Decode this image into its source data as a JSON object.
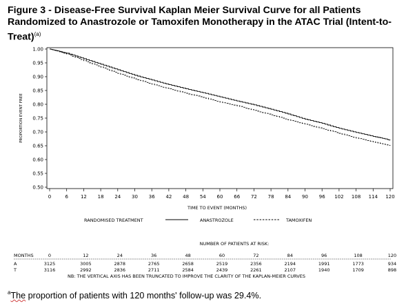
{
  "title": {
    "text": "Figure 3 - Disease-Free Survival Kaplan Meier Survival Curve for all Patients Randomized to Anastrozole or Tamoxifen Monotherapy in the ATAC Trial (Intent-to-Treat)",
    "superscript": "(a)"
  },
  "chart_data": {
    "type": "line",
    "title": "",
    "xlabel": "TIME TO EVENT (MONTHS)",
    "ylabel": "PROPORTION EVENT FREE",
    "xlim": [
      0,
      120
    ],
    "ylim": [
      0.5,
      1.0
    ],
    "x_ticks": [
      0,
      6,
      12,
      18,
      24,
      30,
      36,
      42,
      48,
      54,
      60,
      66,
      72,
      78,
      84,
      90,
      96,
      102,
      108,
      114,
      120
    ],
    "y_ticks": [
      0.5,
      0.55,
      0.6,
      0.65,
      0.7,
      0.75,
      0.8,
      0.85,
      0.9,
      0.95,
      1.0
    ],
    "y_tick_labels": [
      "0.50",
      "0.55",
      "0.60",
      "0.65",
      "0.70",
      "0.75",
      "0.80",
      "0.85",
      "0.90",
      "0.95",
      "1.00"
    ],
    "legend": {
      "title": "RANDOMISED TREATMENT",
      "placement": "bottom"
    },
    "series": [
      {
        "name": "ANASTROZOLE",
        "style": "solid",
        "x": [
          0,
          3,
          6,
          12,
          18,
          24,
          30,
          36,
          42,
          48,
          54,
          60,
          66,
          72,
          78,
          84,
          90,
          96,
          102,
          108,
          114,
          119,
          120
        ],
        "y": [
          1.0,
          0.993,
          0.985,
          0.965,
          0.945,
          0.925,
          0.905,
          0.888,
          0.871,
          0.856,
          0.842,
          0.827,
          0.812,
          0.798,
          0.782,
          0.765,
          0.746,
          0.731,
          0.713,
          0.698,
          0.684,
          0.673,
          0.67
        ]
      },
      {
        "name": "TAMOXIFEN",
        "style": "dashed",
        "x": [
          0,
          3,
          6,
          12,
          18,
          24,
          30,
          36,
          42,
          48,
          54,
          60,
          66,
          72,
          78,
          84,
          90,
          96,
          102,
          108,
          114,
          119,
          120
        ],
        "y": [
          1.0,
          0.992,
          0.982,
          0.958,
          0.935,
          0.912,
          0.892,
          0.873,
          0.856,
          0.84,
          0.825,
          0.808,
          0.795,
          0.778,
          0.762,
          0.744,
          0.728,
          0.712,
          0.695,
          0.678,
          0.664,
          0.653,
          0.651
        ]
      }
    ]
  },
  "risk_table": {
    "heading": "NUMBER OF PATIENTS AT RISK:",
    "header_label": "MONTHS",
    "months": [
      "0",
      "12",
      "24",
      "36",
      "48",
      "60",
      "72",
      "84",
      "96",
      "108",
      "120"
    ],
    "rows": [
      {
        "label": "A",
        "values": [
          "3125",
          "3005",
          "2878",
          "2765",
          "2658",
          "2519",
          "2356",
          "2194",
          "1991",
          "1773",
          "934"
        ]
      },
      {
        "label": "T",
        "values": [
          "3116",
          "2992",
          "2836",
          "2711",
          "2584",
          "2439",
          "2261",
          "2107",
          "1940",
          "1709",
          "898"
        ]
      }
    ],
    "note": "NB: THE VERTICAL AXIS HAS BEEN TRUNCATED TO IMPROVE THE CLARITY OF THE KAPLAN-MEIER CURVES"
  },
  "footnote": {
    "marker": "a",
    "text_prefix": "The",
    "text_rest": " proportion of patients with 120 months' follow-up was 29.4%."
  }
}
